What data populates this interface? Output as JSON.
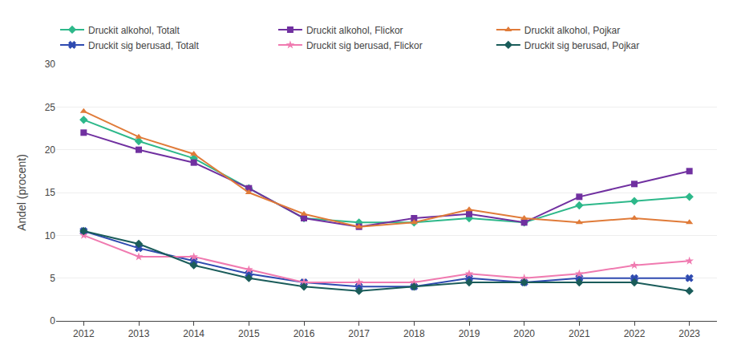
{
  "chart_data": {
    "type": "line",
    "x": [
      2012,
      2013,
      2014,
      2015,
      2016,
      2017,
      2018,
      2019,
      2020,
      2021,
      2022,
      2023
    ],
    "xlim": [
      2011.5,
      2023.5
    ],
    "xticks": [
      2012,
      2013,
      2014,
      2015,
      2016,
      2017,
      2018,
      2019,
      2020,
      2021,
      2022,
      2023
    ],
    "ylabel": "Andel (procent)",
    "ylim": [
      0,
      30
    ],
    "yticks": [
      0,
      5,
      10,
      15,
      20,
      25,
      30
    ],
    "grid": true,
    "legend": "top",
    "series": [
      {
        "name": "Druckit alkohol, Totalt",
        "color": "#2db88a",
        "marker": "diamond",
        "values": [
          23.5,
          21.0,
          19.0,
          15.5,
          12.0,
          11.5,
          11.5,
          12.0,
          11.5,
          13.5,
          14.0,
          14.5
        ]
      },
      {
        "name": "Druckit alkohol, Flickor",
        "color": "#7030a0",
        "marker": "square",
        "values": [
          22.0,
          20.0,
          18.5,
          15.5,
          12.0,
          11.0,
          12.0,
          12.5,
          11.5,
          14.5,
          16.0,
          17.5
        ]
      },
      {
        "name": "Druckit alkohol, Pojkar",
        "color": "#e07b39",
        "marker": "triangle-up",
        "values": [
          24.5,
          21.5,
          19.5,
          15.0,
          12.5,
          11.0,
          11.5,
          13.0,
          12.0,
          11.5,
          12.0,
          11.5
        ]
      },
      {
        "name": "Druckit sig berusad, Totalt",
        "color": "#2e4ab0",
        "marker": "x",
        "values": [
          10.5,
          8.5,
          7.0,
          5.5,
          4.5,
          4.0,
          4.0,
          5.0,
          4.5,
          5.0,
          5.0,
          5.0
        ]
      },
      {
        "name": "Druckit sig berusad, Flickor",
        "color": "#f07ab0",
        "marker": "star",
        "values": [
          10.0,
          7.5,
          7.5,
          6.0,
          4.5,
          4.5,
          4.5,
          5.5,
          5.0,
          5.5,
          6.5,
          7.0
        ]
      },
      {
        "name": "Druckit sig berusad, Pojkar",
        "color": "#1a5c5a",
        "marker": "diamond",
        "values": [
          10.5,
          9.0,
          6.5,
          5.0,
          4.0,
          3.5,
          4.0,
          4.5,
          4.5,
          4.5,
          4.5,
          3.5
        ]
      }
    ]
  }
}
